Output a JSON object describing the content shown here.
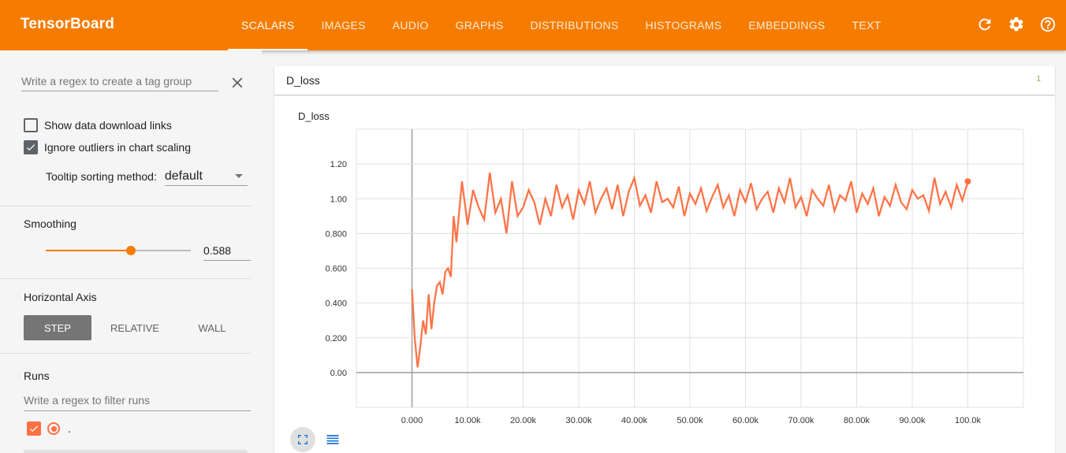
{
  "app": {
    "title": "TensorBoard",
    "tabs": [
      {
        "label": "SCALARS",
        "active": true
      },
      {
        "label": "IMAGES"
      },
      {
        "label": "AUDIO"
      },
      {
        "label": "GRAPHS"
      },
      {
        "label": "DISTRIBUTIONS"
      },
      {
        "label": "HISTOGRAMS"
      },
      {
        "label": "EMBEDDINGS"
      },
      {
        "label": "TEXT"
      }
    ],
    "icons": [
      "refresh-icon",
      "settings-icon",
      "help-icon"
    ],
    "accent_color": "#f57c00"
  },
  "sidebar": {
    "tag_regex_placeholder": "Write a regex to create a tag group",
    "show_download_label": "Show data download links",
    "show_download_checked": false,
    "ignore_outliers_label": "Ignore outliers in chart scaling",
    "ignore_outliers_checked": true,
    "tooltip_label": "Tooltip sorting method:",
    "tooltip_value": "default",
    "smoothing_title": "Smoothing",
    "smoothing_value": "0.588",
    "smoothing_fraction": 0.588,
    "haxis_title": "Horizontal Axis",
    "haxis_options": [
      "STEP",
      "RELATIVE",
      "WALL"
    ],
    "haxis_selected": "STEP",
    "runs_title": "Runs",
    "runs_filter_placeholder": "Write a regex to filter runs",
    "runs": [
      {
        "name": ".",
        "color": "#ff7043",
        "checked": true
      }
    ]
  },
  "main": {
    "category_name": "D_loss",
    "category_count": "1",
    "card_title": "D_loss"
  },
  "chart_data": {
    "type": "line",
    "title": "D_loss",
    "xlabel": "",
    "ylabel": "",
    "xlim": [
      -10000,
      110000
    ],
    "ylim": [
      -0.2,
      1.4
    ],
    "x_ticks": [
      "0.000",
      "10.00k",
      "20.00k",
      "30.00k",
      "40.00k",
      "50.00k",
      "60.00k",
      "70.00k",
      "80.00k",
      "90.00k",
      "100.0k"
    ],
    "y_ticks": [
      "0.00",
      "0.200",
      "0.400",
      "0.600",
      "0.800",
      "1.00",
      "1.20"
    ],
    "grid": true,
    "series_color": "#ff7043",
    "series": [
      {
        "name": ".",
        "x": [
          0,
          500,
          1000,
          1500,
          2000,
          2500,
          3000,
          3500,
          4000,
          4500,
          5000,
          5500,
          6000,
          6500,
          7000,
          7500,
          8000,
          9000,
          10000,
          11000,
          12000,
          13000,
          14000,
          15000,
          16000,
          17000,
          18000,
          19000,
          20000,
          21000,
          22000,
          23000,
          24000,
          25000,
          26000,
          27000,
          28000,
          29000,
          30000,
          31000,
          32000,
          33000,
          34000,
          35000,
          36000,
          37000,
          38000,
          39000,
          40000,
          41000,
          42000,
          43000,
          44000,
          45000,
          46000,
          47000,
          48000,
          49000,
          50000,
          51000,
          52000,
          53000,
          54000,
          55000,
          56000,
          57000,
          58000,
          59000,
          60000,
          61000,
          62000,
          63000,
          64000,
          65000,
          66000,
          67000,
          68000,
          69000,
          70000,
          71000,
          72000,
          73000,
          74000,
          75000,
          76000,
          77000,
          78000,
          79000,
          80000,
          81000,
          82000,
          83000,
          84000,
          85000,
          86000,
          87000,
          88000,
          89000,
          90000,
          91000,
          92000,
          93000,
          94000,
          95000,
          96000,
          97000,
          98000,
          99000,
          100000
        ],
        "values": [
          0.48,
          0.2,
          0.03,
          0.15,
          0.3,
          0.22,
          0.45,
          0.25,
          0.4,
          0.5,
          0.52,
          0.45,
          0.58,
          0.6,
          0.55,
          0.9,
          0.75,
          1.1,
          0.85,
          1.05,
          0.95,
          0.88,
          1.15,
          0.92,
          1.0,
          0.8,
          1.1,
          0.9,
          0.95,
          1.05,
          0.98,
          0.85,
          1.0,
          0.9,
          1.08,
          0.95,
          1.02,
          0.88,
          1.05,
          0.97,
          1.1,
          0.92,
          1.0,
          1.06,
          0.94,
          1.08,
          0.9,
          1.04,
          1.12,
          0.96,
          1.02,
          0.92,
          1.1,
          0.98,
          1.0,
          0.95,
          1.07,
          0.9,
          1.03,
          0.97,
          1.06,
          0.93,
          1.01,
          1.08,
          0.95,
          1.02,
          0.9,
          1.05,
          0.98,
          1.09,
          0.94,
          1.0,
          1.04,
          0.92,
          1.06,
          0.98,
          1.12,
          0.95,
          1.01,
          0.9,
          1.05,
          1.0,
          0.96,
          1.08,
          0.93,
          1.02,
          0.99,
          1.1,
          0.92,
          1.03,
          0.97,
          1.06,
          0.9,
          1.01,
          0.96,
          1.08,
          0.98,
          0.94,
          1.05,
          1.0,
          1.02,
          0.93,
          1.12,
          0.97,
          1.04,
          0.95,
          1.08,
          0.99,
          1.1
        ]
      }
    ]
  }
}
